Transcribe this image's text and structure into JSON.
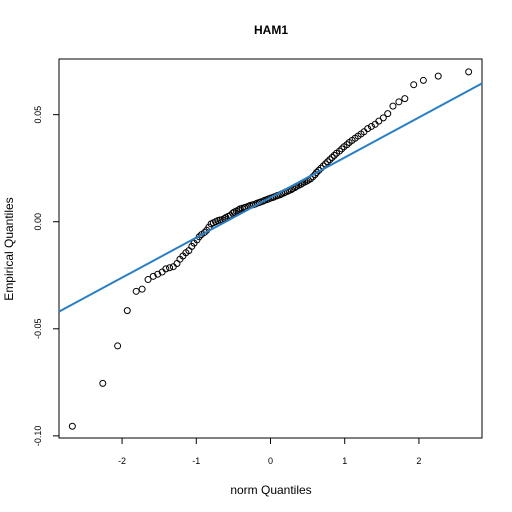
{
  "chart_data": {
    "type": "scatter",
    "title": "HAM1",
    "xlabel": "norm Quantiles",
    "ylabel": "Empirical Quantiles",
    "xlim": [
      -2.85,
      2.85
    ],
    "ylim": [
      -0.101,
      0.076
    ],
    "xticks": [
      -2,
      -1,
      0,
      1,
      2
    ],
    "yticks": [
      -0.1,
      -0.05,
      0.0,
      0.05
    ],
    "xtick_labels": [
      "-2",
      "-1",
      "0",
      "1",
      "2"
    ],
    "ytick_labels": [
      "-0.10",
      "-0.05",
      "0.00",
      "0.05"
    ],
    "grid": false,
    "legend": "none",
    "series": [
      {
        "marker": "open-circle",
        "color": "#000000",
        "points": [
          [
            -2.67,
            -0.0955
          ],
          [
            -2.26,
            -0.0755
          ],
          [
            -2.06,
            -0.058
          ],
          [
            -1.93,
            -0.0415
          ],
          [
            -1.81,
            -0.0325
          ],
          [
            -1.73,
            -0.0315
          ],
          [
            -1.65,
            -0.027
          ],
          [
            -1.58,
            -0.0255
          ],
          [
            -1.52,
            -0.0245
          ],
          [
            -1.46,
            -0.0235
          ],
          [
            -1.41,
            -0.022
          ],
          [
            -1.36,
            -0.0215
          ],
          [
            -1.31,
            -0.021
          ],
          [
            -1.26,
            -0.0195
          ],
          [
            -1.22,
            -0.0175
          ],
          [
            -1.18,
            -0.016
          ],
          [
            -1.14,
            -0.0145
          ],
          [
            -1.1,
            -0.0135
          ],
          [
            -1.06,
            -0.0115
          ],
          [
            -1.03,
            -0.01
          ],
          [
            -0.99,
            -0.0085
          ],
          [
            -0.96,
            -0.007
          ],
          [
            -0.93,
            -0.006
          ],
          [
            -0.89,
            -0.005
          ],
          [
            -0.86,
            -0.004
          ],
          [
            -0.83,
            -0.0025
          ],
          [
            -0.8,
            -0.001
          ],
          [
            -0.77,
            -0.0005
          ],
          [
            -0.74,
            0.0
          ],
          [
            -0.71,
            0.0005
          ],
          [
            -0.68,
            0.0008
          ],
          [
            -0.65,
            0.001
          ],
          [
            -0.62,
            0.0015
          ],
          [
            -0.6,
            0.002
          ],
          [
            -0.57,
            0.0025
          ],
          [
            -0.54,
            0.003
          ],
          [
            -0.51,
            0.004
          ],
          [
            -0.49,
            0.0045
          ],
          [
            -0.46,
            0.005
          ],
          [
            -0.43,
            0.0055
          ],
          [
            -0.41,
            0.006
          ],
          [
            -0.38,
            0.0063
          ],
          [
            -0.35,
            0.0066
          ],
          [
            -0.33,
            0.0068
          ],
          [
            -0.3,
            0.0072
          ],
          [
            -0.28,
            0.0075
          ],
          [
            -0.25,
            0.0078
          ],
          [
            -0.23,
            0.008
          ],
          [
            -0.2,
            0.0083
          ],
          [
            -0.18,
            0.0087
          ],
          [
            -0.15,
            0.009
          ],
          [
            -0.13,
            0.0093
          ],
          [
            -0.1,
            0.0096
          ],
          [
            -0.08,
            0.01
          ],
          [
            -0.05,
            0.0103
          ],
          [
            -0.03,
            0.0106
          ],
          [
            0.0,
            0.011
          ],
          [
            0.03,
            0.0113
          ],
          [
            0.05,
            0.0116
          ],
          [
            0.08,
            0.012
          ],
          [
            0.1,
            0.0123
          ],
          [
            0.13,
            0.0126
          ],
          [
            0.15,
            0.013
          ],
          [
            0.18,
            0.0134
          ],
          [
            0.2,
            0.0138
          ],
          [
            0.23,
            0.0142
          ],
          [
            0.25,
            0.0146
          ],
          [
            0.28,
            0.015
          ],
          [
            0.3,
            0.0155
          ],
          [
            0.33,
            0.016
          ],
          [
            0.35,
            0.0165
          ],
          [
            0.38,
            0.017
          ],
          [
            0.41,
            0.0175
          ],
          [
            0.43,
            0.018
          ],
          [
            0.46,
            0.0185
          ],
          [
            0.49,
            0.019
          ],
          [
            0.51,
            0.0195
          ],
          [
            0.54,
            0.02
          ],
          [
            0.57,
            0.021
          ],
          [
            0.6,
            0.022
          ],
          [
            0.62,
            0.023
          ],
          [
            0.65,
            0.024
          ],
          [
            0.68,
            0.025
          ],
          [
            0.71,
            0.026
          ],
          [
            0.74,
            0.027
          ],
          [
            0.77,
            0.028
          ],
          [
            0.8,
            0.029
          ],
          [
            0.83,
            0.03
          ],
          [
            0.86,
            0.031
          ],
          [
            0.89,
            0.032
          ],
          [
            0.93,
            0.033
          ],
          [
            0.96,
            0.034
          ],
          [
            0.99,
            0.035
          ],
          [
            1.03,
            0.036
          ],
          [
            1.06,
            0.037
          ],
          [
            1.1,
            0.038
          ],
          [
            1.14,
            0.039
          ],
          [
            1.18,
            0.04
          ],
          [
            1.22,
            0.041
          ],
          [
            1.26,
            0.042
          ],
          [
            1.31,
            0.0435
          ],
          [
            1.36,
            0.0445
          ],
          [
            1.41,
            0.0455
          ],
          [
            1.46,
            0.047
          ],
          [
            1.52,
            0.0485
          ],
          [
            1.58,
            0.0505
          ],
          [
            1.65,
            0.054
          ],
          [
            1.73,
            0.056
          ],
          [
            1.81,
            0.0575
          ],
          [
            1.93,
            0.064
          ],
          [
            2.06,
            0.066
          ],
          [
            2.26,
            0.068
          ],
          [
            2.67,
            0.07
          ]
        ]
      }
    ],
    "reference_line": {
      "color": "#2a7fc4",
      "intercept": 0.0113,
      "slope": 0.0187
    }
  }
}
